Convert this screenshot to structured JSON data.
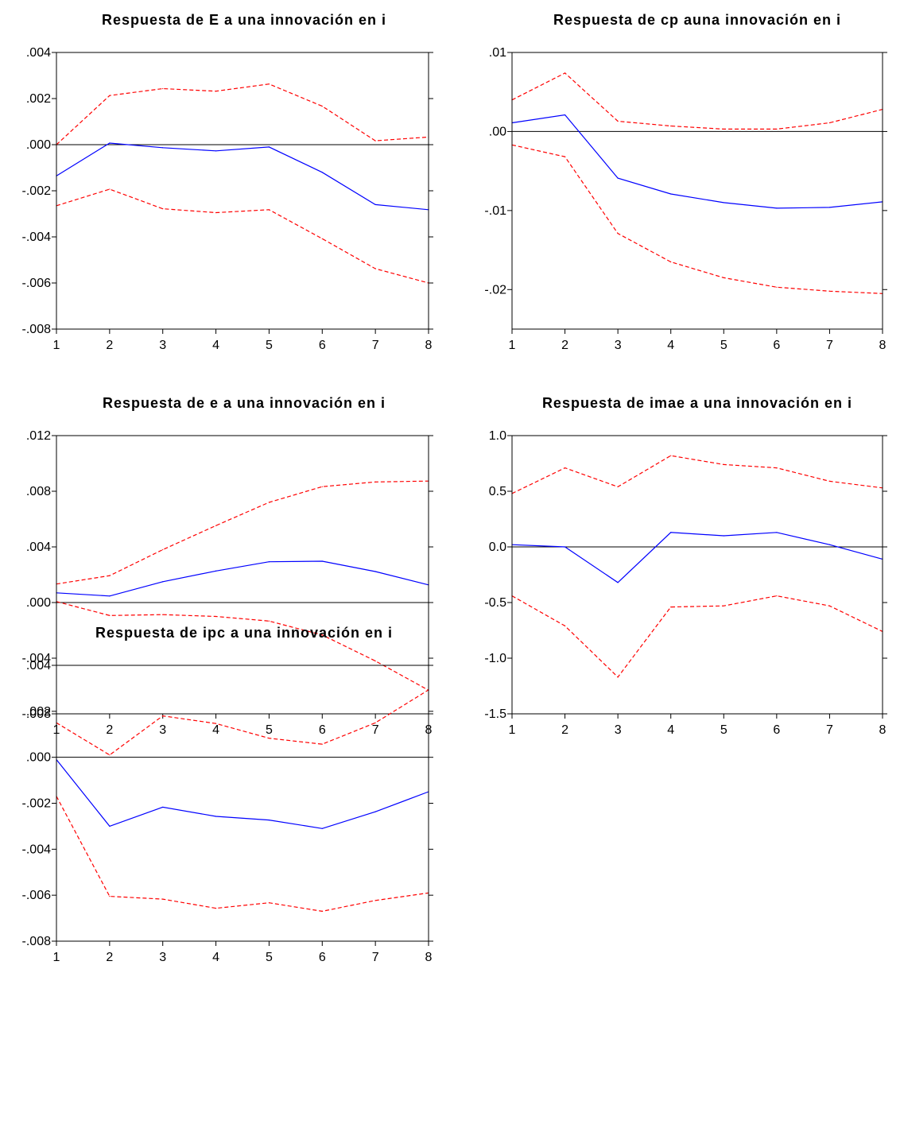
{
  "colors": {
    "response": "#0000FF",
    "band": "#FF0000",
    "axis": "#000000"
  },
  "chart_data": [
    {
      "type": "line",
      "title": "Respuesta de E a una innovación en i",
      "x": [
        1,
        2,
        3,
        4,
        5,
        6,
        7,
        8
      ],
      "ylim": [
        -0.008,
        0.004
      ],
      "yticks": [
        ".004",
        ".002",
        ".000",
        "-.002",
        "-.004",
        "-.006",
        "-.008"
      ],
      "ytick_values": [
        0.004,
        0.002,
        0.0,
        -0.002,
        -0.004,
        -0.006,
        -0.008
      ],
      "series": [
        {
          "style": "solid",
          "values": [
            -0.00135,
            7e-05,
            -0.00013,
            -0.00027,
            -0.0001,
            -0.0012,
            -0.0026,
            -0.00282
          ]
        },
        {
          "style": "dashed",
          "values": [
            0.0,
            0.00213,
            0.00243,
            0.00232,
            0.00263,
            0.00167,
            0.00017,
            0.00033
          ]
        },
        {
          "style": "dashed",
          "values": [
            -0.00265,
            -0.00193,
            -0.00278,
            -0.00295,
            -0.00282,
            -0.00408,
            -0.00538,
            -0.006
          ]
        }
      ]
    },
    {
      "type": "line",
      "title": "Respuesta de cp auna innovación en  i",
      "x": [
        1,
        2,
        3,
        4,
        5,
        6,
        7,
        8
      ],
      "ylim": [
        -0.025,
        0.01
      ],
      "yticks": [
        ".01",
        ".00",
        "-.01",
        "-.02"
      ],
      "ytick_values": [
        0.01,
        0.0,
        -0.01,
        -0.02
      ],
      "series": [
        {
          "style": "solid",
          "values": [
            0.0011,
            0.0021,
            -0.0059,
            -0.0079,
            -0.009,
            -0.0097,
            -0.0096,
            -0.0089
          ]
        },
        {
          "style": "dashed",
          "values": [
            0.004,
            0.0074,
            0.0013,
            0.0007,
            0.0003,
            0.0003,
            0.0011,
            0.0028
          ]
        },
        {
          "style": "dashed",
          "values": [
            -0.0017,
            -0.0032,
            -0.0129,
            -0.0165,
            -0.0185,
            -0.0197,
            -0.0202,
            -0.0205
          ]
        }
      ]
    },
    {
      "type": "line",
      "title": "Respuesta de e a una innovación en i",
      "x": [
        1,
        2,
        3,
        4,
        5,
        6,
        7,
        8
      ],
      "ylim": [
        -0.008,
        0.012
      ],
      "yticks": [
        ".012",
        ".008",
        ".004",
        ".000",
        "-.004",
        "-.008"
      ],
      "ytick_values": [
        0.012,
        0.008,
        0.004,
        0.0,
        -0.004,
        -0.008
      ],
      "series": [
        {
          "style": "solid",
          "values": [
            0.0007,
            0.00047,
            0.0015,
            0.00227,
            0.00293,
            0.00297,
            0.00223,
            0.00127
          ]
        },
        {
          "style": "dashed",
          "values": [
            0.00133,
            0.00193,
            0.0038,
            0.00553,
            0.0072,
            0.00833,
            0.00867,
            0.00873
          ]
        },
        {
          "style": "dashed",
          "values": [
            7e-05,
            -0.00093,
            -0.00087,
            -0.001,
            -0.00133,
            -0.00233,
            -0.0042,
            -0.0063
          ]
        }
      ]
    },
    {
      "type": "line",
      "title": "Respuesta de imae a una innovación en i",
      "x": [
        1,
        2,
        3,
        4,
        5,
        6,
        7,
        8
      ],
      "ylim": [
        -1.5,
        1.0
      ],
      "yticks": [
        "1.0",
        "0.5",
        "0.0",
        "-0.5",
        "-1.0",
        "-1.5"
      ],
      "ytick_values": [
        1.0,
        0.5,
        0.0,
        -0.5,
        -1.0,
        -1.5
      ],
      "series": [
        {
          "style": "solid",
          "values": [
            0.02,
            0.0,
            -0.32,
            0.13,
            0.1,
            0.13,
            0.02,
            -0.11
          ]
        },
        {
          "style": "dashed",
          "values": [
            0.48,
            0.71,
            0.54,
            0.82,
            0.74,
            0.71,
            0.59,
            0.53
          ]
        },
        {
          "style": "dashed",
          "values": [
            -0.44,
            -0.71,
            -1.17,
            -0.54,
            -0.53,
            -0.44,
            -0.53,
            -0.76
          ]
        }
      ]
    },
    {
      "type": "line",
      "title": "Respuesta de ipc a una innovación en i",
      "x": [
        1,
        2,
        3,
        4,
        5,
        6,
        7,
        8
      ],
      "ylim": [
        -0.008,
        0.004
      ],
      "yticks": [
        ".004",
        ".002",
        ".000",
        "-.002",
        "-.004",
        "-.006",
        "-.008"
      ],
      "ytick_values": [
        0.004,
        0.002,
        0.0,
        -0.002,
        -0.004,
        -0.006,
        -0.008
      ],
      "series": [
        {
          "style": "solid",
          "values": [
            -0.0001,
            -0.003,
            -0.00217,
            -0.00257,
            -0.00273,
            -0.0031,
            -0.00237,
            -0.0015
          ]
        },
        {
          "style": "dashed",
          "values": [
            0.0015,
            0.0001,
            0.0018,
            0.00147,
            0.00083,
            0.00057,
            0.0015,
            0.00293
          ]
        },
        {
          "style": "dashed",
          "values": [
            -0.0017,
            -0.00605,
            -0.00617,
            -0.00657,
            -0.00633,
            -0.0067,
            -0.00623,
            -0.0059
          ]
        }
      ]
    }
  ]
}
